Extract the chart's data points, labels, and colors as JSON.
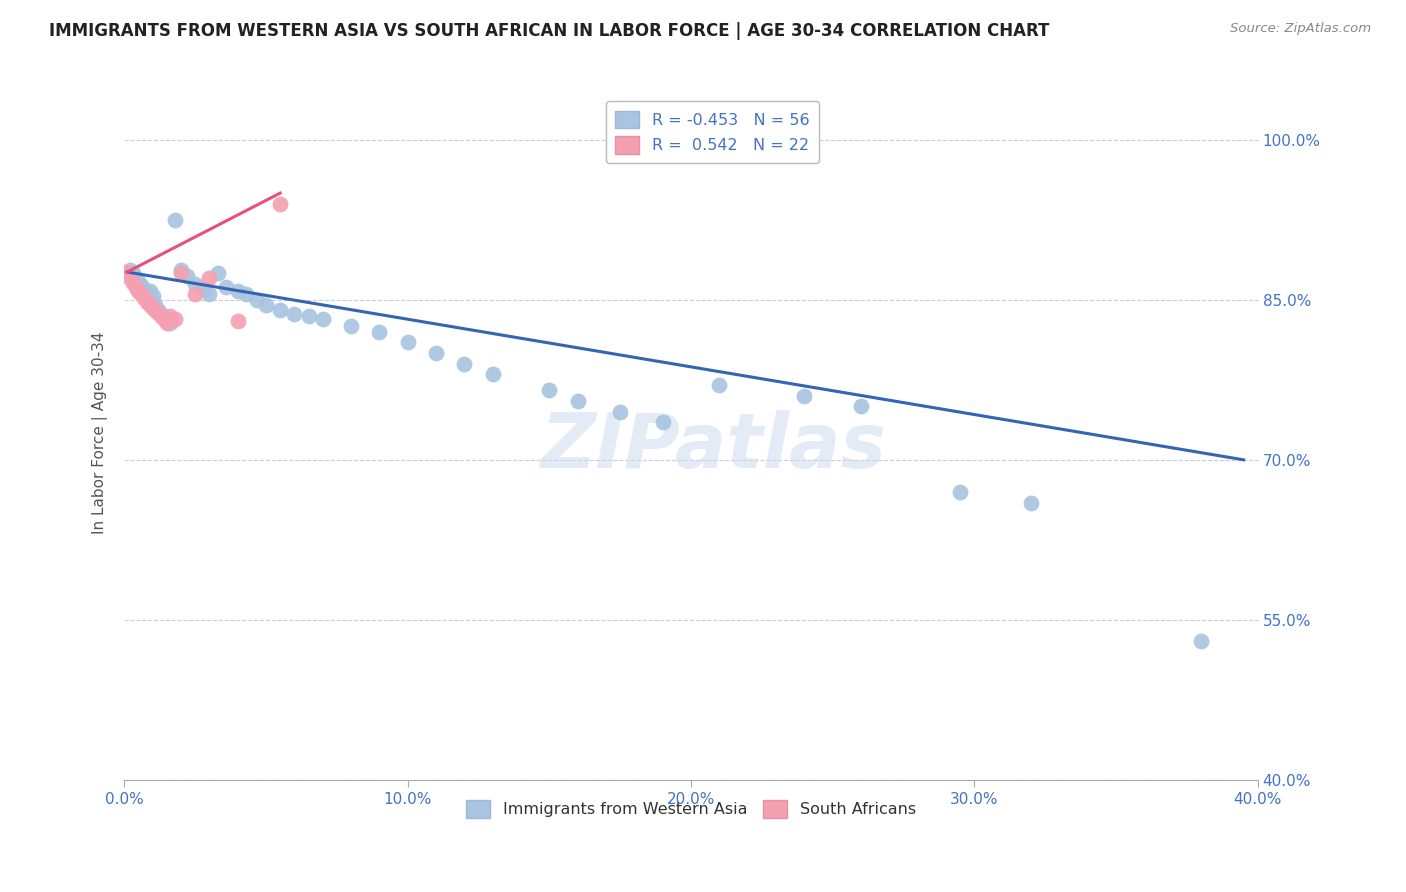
{
  "title": "IMMIGRANTS FROM WESTERN ASIA VS SOUTH AFRICAN IN LABOR FORCE | AGE 30-34 CORRELATION CHART",
  "source": "Source: ZipAtlas.com",
  "ylabel": "In Labor Force | Age 30-34",
  "xlim": [
    0.0,
    0.4
  ],
  "ylim": [
    0.4,
    1.05
  ],
  "yticks": [
    0.4,
    0.55,
    0.7,
    0.85,
    1.0
  ],
  "xticks": [
    0.0,
    0.1,
    0.2,
    0.3,
    0.4
  ],
  "blue_R": -0.453,
  "blue_N": 56,
  "pink_R": 0.542,
  "pink_N": 22,
  "blue_color": "#a8c4e0",
  "pink_color": "#f4a0b0",
  "blue_line_color": "#3464b4",
  "pink_line_color": "#e8507a",
  "legend_blue_label": "Immigrants from Western Asia",
  "legend_pink_label": "South Africans",
  "axis_label_color": "#4472c4",
  "watermark_text": "ZIPatlas",
  "blue_points_x": [
    0.001,
    0.002,
    0.002,
    0.003,
    0.003,
    0.004,
    0.004,
    0.005,
    0.005,
    0.006,
    0.006,
    0.007,
    0.007,
    0.008,
    0.008,
    0.009,
    0.01,
    0.01,
    0.011,
    0.012,
    0.013,
    0.014,
    0.015,
    0.016,
    0.018,
    0.02,
    0.022,
    0.025,
    0.028,
    0.03,
    0.033,
    0.036,
    0.04,
    0.043,
    0.047,
    0.05,
    0.055,
    0.06,
    0.065,
    0.07,
    0.08,
    0.09,
    0.1,
    0.11,
    0.12,
    0.13,
    0.15,
    0.16,
    0.175,
    0.19,
    0.21,
    0.24,
    0.26,
    0.295,
    0.32,
    0.38
  ],
  "blue_points_y": [
    0.876,
    0.872,
    0.878,
    0.869,
    0.875,
    0.865,
    0.87,
    0.862,
    0.868,
    0.858,
    0.864,
    0.855,
    0.86,
    0.852,
    0.857,
    0.858,
    0.848,
    0.854,
    0.845,
    0.84,
    0.837,
    0.835,
    0.83,
    0.828,
    0.925,
    0.878,
    0.872,
    0.865,
    0.86,
    0.855,
    0.875,
    0.862,
    0.858,
    0.855,
    0.85,
    0.845,
    0.84,
    0.837,
    0.835,
    0.832,
    0.825,
    0.82,
    0.81,
    0.8,
    0.79,
    0.78,
    0.765,
    0.755,
    0.745,
    0.735,
    0.77,
    0.76,
    0.75,
    0.67,
    0.66,
    0.53
  ],
  "pink_points_x": [
    0.001,
    0.002,
    0.003,
    0.004,
    0.005,
    0.006,
    0.007,
    0.008,
    0.009,
    0.01,
    0.011,
    0.012,
    0.013,
    0.014,
    0.015,
    0.016,
    0.018,
    0.02,
    0.025,
    0.03,
    0.04,
    0.055
  ],
  "pink_points_y": [
    0.876,
    0.87,
    0.866,
    0.862,
    0.858,
    0.855,
    0.852,
    0.848,
    0.845,
    0.842,
    0.84,
    0.838,
    0.835,
    0.832,
    0.828,
    0.835,
    0.832,
    0.875,
    0.855,
    0.87,
    0.83,
    0.94
  ],
  "blue_line_x": [
    0.001,
    0.395
  ],
  "blue_line_y": [
    0.876,
    0.7
  ],
  "pink_line_x": [
    0.001,
    0.055
  ],
  "pink_line_y": [
    0.876,
    0.95
  ]
}
